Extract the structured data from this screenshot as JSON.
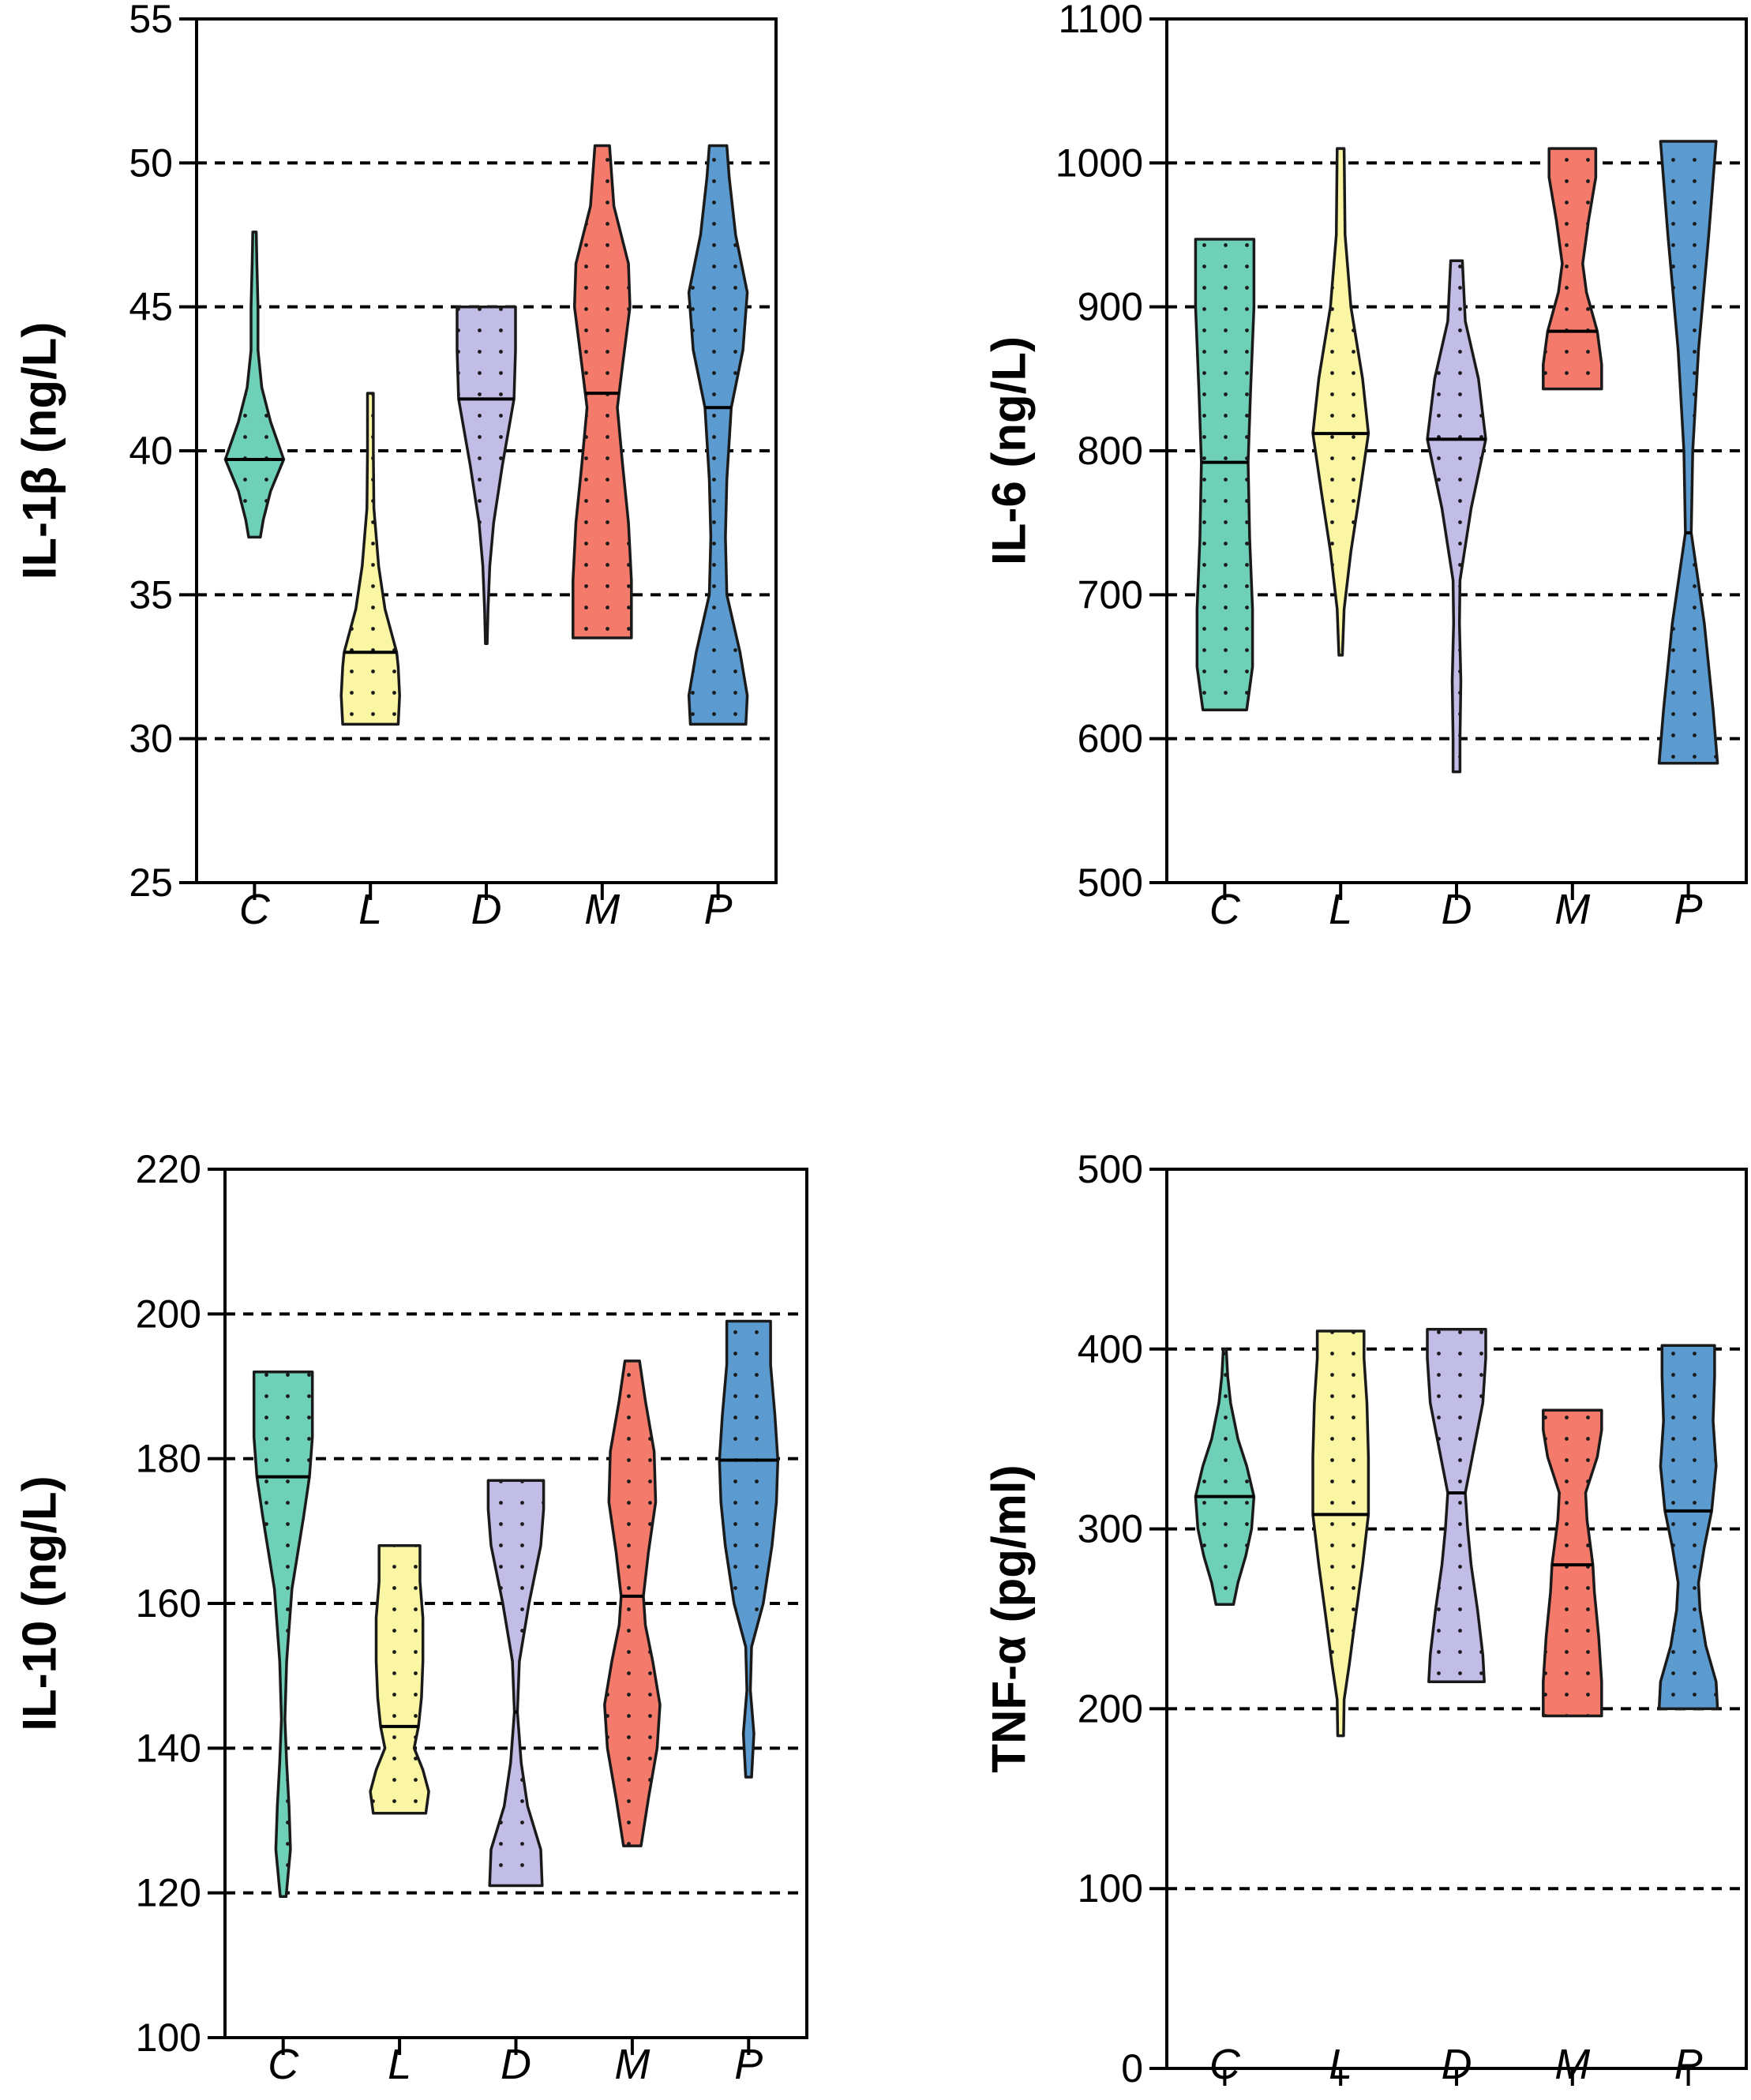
{
  "chart_data": [
    {
      "type": "violin",
      "ylabel": "IL-1β (ng/L)",
      "ylim": [
        25,
        55
      ],
      "yticks": [
        "25",
        "30",
        "35",
        "40",
        "45",
        "50",
        "55"
      ],
      "gridlines": [
        30,
        35,
        40,
        45,
        50
      ],
      "categories": [
        "C",
        "L",
        "D",
        "M",
        "P"
      ],
      "groups": [
        {
          "name": "C",
          "color": "#6fd0b8",
          "min": 37.0,
          "max": 47.6,
          "median": 39.7,
          "profile": [
            [
              37.0,
              0.2
            ],
            [
              37.6,
              0.3
            ],
            [
              38.6,
              0.55
            ],
            [
              39.7,
              1.0
            ],
            [
              41.0,
              0.55
            ],
            [
              42.2,
              0.25
            ],
            [
              43.5,
              0.12
            ],
            [
              45.0,
              0.12
            ],
            [
              46.5,
              0.08
            ],
            [
              47.6,
              0.06
            ]
          ]
        },
        {
          "name": "L",
          "color": "#fbf6a4",
          "min": 30.5,
          "max": 42.0,
          "median": 33.0,
          "profile": [
            [
              30.5,
              0.95
            ],
            [
              31.5,
              1.0
            ],
            [
              32.5,
              0.95
            ],
            [
              33.0,
              0.9
            ],
            [
              34.5,
              0.5
            ],
            [
              36.0,
              0.28
            ],
            [
              38.0,
              0.12
            ],
            [
              40.0,
              0.1
            ],
            [
              42.0,
              0.1
            ]
          ]
        },
        {
          "name": "D",
          "color": "#c1bde6",
          "min": 33.3,
          "max": 45.0,
          "median": 41.8,
          "profile": [
            [
              33.3,
              0.03
            ],
            [
              34.5,
              0.06
            ],
            [
              36.0,
              0.12
            ],
            [
              37.5,
              0.25
            ],
            [
              39.5,
              0.55
            ],
            [
              41.8,
              0.95
            ],
            [
              43.5,
              1.0
            ],
            [
              45.0,
              1.0
            ]
          ]
        },
        {
          "name": "M",
          "color": "#f47a6b",
          "min": 33.5,
          "max": 50.6,
          "median": 42.0,
          "profile": [
            [
              33.5,
              1.0
            ],
            [
              35.5,
              1.0
            ],
            [
              37.5,
              0.9
            ],
            [
              39.5,
              0.7
            ],
            [
              41.5,
              0.52
            ],
            [
              43.0,
              0.7
            ],
            [
              45.0,
              0.95
            ],
            [
              46.5,
              0.9
            ],
            [
              48.5,
              0.4
            ],
            [
              50.6,
              0.25
            ]
          ]
        },
        {
          "name": "P",
          "color": "#5b9bcf",
          "min": 30.5,
          "max": 50.6,
          "median": 41.5,
          "profile": [
            [
              30.5,
              0.95
            ],
            [
              31.5,
              1.0
            ],
            [
              33.0,
              0.75
            ],
            [
              35.0,
              0.3
            ],
            [
              37.0,
              0.25
            ],
            [
              39.0,
              0.3
            ],
            [
              41.5,
              0.45
            ],
            [
              43.5,
              0.85
            ],
            [
              45.5,
              1.0
            ],
            [
              47.5,
              0.6
            ],
            [
              49.5,
              0.38
            ],
            [
              50.6,
              0.3
            ]
          ]
        }
      ]
    },
    {
      "type": "violin",
      "ylabel": "IL-6 (ng/L)",
      "ylim": [
        500,
        1100
      ],
      "yticks": [
        "500",
        "600",
        "700",
        "800",
        "900",
        "1000",
        "1100"
      ],
      "gridlines": [
        600,
        700,
        800,
        900,
        1000
      ],
      "categories": [
        "C",
        "L",
        "D",
        "M",
        "P"
      ],
      "groups": [
        {
          "name": "C",
          "color": "#6fd0b8",
          "min": 620,
          "max": 947,
          "median": 792,
          "profile": [
            [
              620,
              0.75
            ],
            [
              650,
              0.95
            ],
            [
              690,
              0.95
            ],
            [
              740,
              0.85
            ],
            [
              792,
              0.8
            ],
            [
              840,
              0.88
            ],
            [
              900,
              1.0
            ],
            [
              947,
              1.0
            ]
          ]
        },
        {
          "name": "L",
          "color": "#fbf6a4",
          "min": 658,
          "max": 1010,
          "median": 812,
          "profile": [
            [
              658,
              0.06
            ],
            [
              690,
              0.12
            ],
            [
              730,
              0.35
            ],
            [
              770,
              0.65
            ],
            [
              812,
              0.95
            ],
            [
              850,
              0.75
            ],
            [
              900,
              0.35
            ],
            [
              950,
              0.15
            ],
            [
              1010,
              0.12
            ]
          ]
        },
        {
          "name": "D",
          "color": "#c1bde6",
          "min": 577,
          "max": 932,
          "median": 808,
          "profile": [
            [
              577,
              0.12
            ],
            [
              600,
              0.12
            ],
            [
              640,
              0.15
            ],
            [
              680,
              0.1
            ],
            [
              710,
              0.12
            ],
            [
              760,
              0.5
            ],
            [
              808,
              1.0
            ],
            [
              850,
              0.75
            ],
            [
              890,
              0.3
            ],
            [
              932,
              0.2
            ]
          ]
        },
        {
          "name": "M",
          "color": "#f47a6b",
          "min": 843,
          "max": 1010,
          "median": 883,
          "profile": [
            [
              843,
              1.0
            ],
            [
              860,
              1.0
            ],
            [
              883,
              0.85
            ],
            [
              910,
              0.48
            ],
            [
              930,
              0.35
            ],
            [
              960,
              0.55
            ],
            [
              990,
              0.8
            ],
            [
              1010,
              0.8
            ]
          ]
        },
        {
          "name": "P",
          "color": "#5b9bcf",
          "min": 583,
          "max": 1015,
          "median": 743,
          "profile": [
            [
              583,
              1.0
            ],
            [
              620,
              0.85
            ],
            [
              680,
              0.55
            ],
            [
              743,
              0.1
            ],
            [
              800,
              0.15
            ],
            [
              870,
              0.35
            ],
            [
              950,
              0.7
            ],
            [
              1015,
              0.95
            ]
          ]
        }
      ]
    },
    {
      "type": "violin",
      "ylabel": "IL-10 (ng/L)",
      "ylim": [
        100,
        220
      ],
      "yticks": [
        "100",
        "120",
        "140",
        "160",
        "180",
        "200",
        "220"
      ],
      "gridlines": [
        120,
        140,
        160,
        180,
        200
      ],
      "categories": [
        "C",
        "L",
        "D",
        "M",
        "P"
      ],
      "groups": [
        {
          "name": "C",
          "color": "#6fd0b8",
          "min": 119.5,
          "max": 192.0,
          "median": 177.5,
          "profile": [
            [
              119.5,
              0.1
            ],
            [
              126,
              0.25
            ],
            [
              132,
              0.2
            ],
            [
              138,
              0.12
            ],
            [
              144,
              0.06
            ],
            [
              152,
              0.12
            ],
            [
              162,
              0.3
            ],
            [
              172,
              0.7
            ],
            [
              177.5,
              0.9
            ],
            [
              183,
              1.0
            ],
            [
              192,
              1.0
            ]
          ]
        },
        {
          "name": "L",
          "color": "#fbf6a4",
          "min": 131.0,
          "max": 168.0,
          "median": 143.0,
          "profile": [
            [
              131,
              0.9
            ],
            [
              134,
              1.0
            ],
            [
              137,
              0.8
            ],
            [
              140,
              0.5
            ],
            [
              143,
              0.65
            ],
            [
              147,
              0.75
            ],
            [
              152,
              0.8
            ],
            [
              158,
              0.8
            ],
            [
              163,
              0.7
            ],
            [
              168,
              0.7
            ]
          ]
        },
        {
          "name": "D",
          "color": "#c1bde6",
          "min": 121.0,
          "max": 177.0,
          "median": 145.0,
          "profile": [
            [
              121,
              0.9
            ],
            [
              126,
              0.85
            ],
            [
              132,
              0.4
            ],
            [
              138,
              0.18
            ],
            [
              145,
              0.05
            ],
            [
              152,
              0.12
            ],
            [
              160,
              0.45
            ],
            [
              168,
              0.85
            ],
            [
              173,
              0.95
            ],
            [
              177,
              0.95
            ]
          ]
        },
        {
          "name": "M",
          "color": "#f47a6b",
          "min": 126.5,
          "max": 193.5,
          "median": 161.0,
          "profile": [
            [
              126.5,
              0.3
            ],
            [
              133,
              0.55
            ],
            [
              140,
              0.85
            ],
            [
              146,
              0.95
            ],
            [
              152,
              0.7
            ],
            [
              157,
              0.45
            ],
            [
              161,
              0.38
            ],
            [
              167,
              0.55
            ],
            [
              174,
              0.8
            ],
            [
              181,
              0.75
            ],
            [
              188,
              0.45
            ],
            [
              193.5,
              0.25
            ]
          ]
        },
        {
          "name": "P",
          "color": "#5b9bcf",
          "min": 136.0,
          "max": 199.0,
          "median": 179.8,
          "profile": [
            [
              136,
              0.1
            ],
            [
              142,
              0.18
            ],
            [
              148,
              0.06
            ],
            [
              154,
              0.1
            ],
            [
              160,
              0.5
            ],
            [
              168,
              0.8
            ],
            [
              174,
              0.95
            ],
            [
              179.8,
              1.0
            ],
            [
              186,
              0.9
            ],
            [
              193,
              0.75
            ],
            [
              199,
              0.75
            ]
          ]
        }
      ]
    },
    {
      "type": "violin",
      "ylabel": "TNF-α (pg/ml)",
      "ylim": [
        0,
        500
      ],
      "yticks": [
        "0",
        "100",
        "200",
        "300",
        "400",
        "500"
      ],
      "gridlines": [
        100,
        200,
        300,
        400
      ],
      "categories": [
        "C",
        "L",
        "D",
        "M",
        "P"
      ],
      "groups": [
        {
          "name": "C",
          "color": "#6fd0b8",
          "min": 258,
          "max": 400,
          "median": 318,
          "profile": [
            [
              258,
              0.3
            ],
            [
              270,
              0.45
            ],
            [
              285,
              0.72
            ],
            [
              300,
              0.92
            ],
            [
              318,
              1.0
            ],
            [
              335,
              0.75
            ],
            [
              350,
              0.45
            ],
            [
              370,
              0.2
            ],
            [
              385,
              0.1
            ],
            [
              400,
              0.05
            ]
          ]
        },
        {
          "name": "L",
          "color": "#fbf6a4",
          "min": 185,
          "max": 410,
          "median": 308,
          "profile": [
            [
              185,
              0.1
            ],
            [
              205,
              0.12
            ],
            [
              225,
              0.3
            ],
            [
              250,
              0.5
            ],
            [
              280,
              0.75
            ],
            [
              308,
              0.95
            ],
            [
              340,
              0.95
            ],
            [
              370,
              0.9
            ],
            [
              395,
              0.8
            ],
            [
              410,
              0.8
            ]
          ]
        },
        {
          "name": "D",
          "color": "#c1bde6",
          "min": 215,
          "max": 411,
          "median": 320,
          "profile": [
            [
              215,
              0.95
            ],
            [
              230,
              0.9
            ],
            [
              255,
              0.72
            ],
            [
              280,
              0.5
            ],
            [
              300,
              0.38
            ],
            [
              320,
              0.3
            ],
            [
              345,
              0.6
            ],
            [
              370,
              0.9
            ],
            [
              395,
              1.0
            ],
            [
              411,
              1.0
            ]
          ]
        },
        {
          "name": "M",
          "color": "#f47a6b",
          "min": 196,
          "max": 366,
          "median": 280,
          "profile": [
            [
              196,
              1.0
            ],
            [
              215,
              1.0
            ],
            [
              240,
              0.9
            ],
            [
              265,
              0.75
            ],
            [
              280,
              0.7
            ],
            [
              305,
              0.5
            ],
            [
              320,
              0.45
            ],
            [
              340,
              0.85
            ],
            [
              355,
              1.0
            ],
            [
              366,
              1.0
            ]
          ]
        },
        {
          "name": "P",
          "color": "#5b9bcf",
          "min": 200,
          "max": 402,
          "median": 310,
          "profile": [
            [
              200,
              1.0
            ],
            [
              215,
              0.95
            ],
            [
              235,
              0.6
            ],
            [
              255,
              0.4
            ],
            [
              270,
              0.35
            ],
            [
              290,
              0.55
            ],
            [
              310,
              0.8
            ],
            [
              335,
              0.95
            ],
            [
              360,
              0.85
            ],
            [
              385,
              0.9
            ],
            [
              402,
              0.9
            ]
          ]
        }
      ]
    }
  ]
}
